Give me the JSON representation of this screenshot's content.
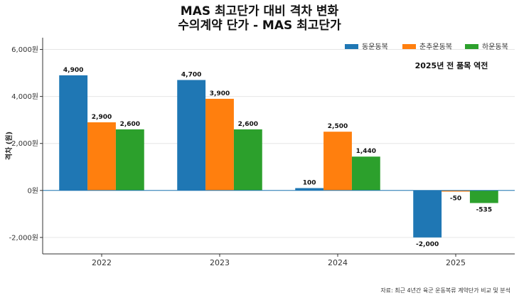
{
  "chart_data": {
    "type": "bar",
    "title_lines": [
      "MAS 최고단가 대비 격차 변화",
      "수의계약 단가 - MAS 최고단가"
    ],
    "categories": [
      "2022",
      "2023",
      "2024",
      "2025"
    ],
    "series": [
      {
        "name": "동운동복",
        "color": "#1f77b4",
        "values": [
          4900,
          4700,
          100,
          -2000
        ],
        "labels": [
          "4,900",
          "4,700",
          "100",
          "-2,000"
        ]
      },
      {
        "name": "춘추운동복",
        "color": "#ff7f0e",
        "values": [
          2900,
          3900,
          2500,
          -50
        ],
        "labels": [
          "2,900",
          "3,900",
          "2,500",
          "-50"
        ]
      },
      {
        "name": "하운동복",
        "color": "#2ca02c",
        "values": [
          2600,
          2600,
          1440,
          -535
        ],
        "labels": [
          "2,600",
          "2,600",
          "1,440",
          "-535"
        ]
      }
    ],
    "ylabel": "격차 (원)",
    "xlabel": "",
    "ylim": [
      -2700,
      6500
    ],
    "yticks": [
      -2000,
      0,
      2000,
      4000,
      6000
    ],
    "ytick_labels": [
      "-2,000원",
      "0원",
      "2,000원",
      "4,000원",
      "6,000원"
    ],
    "grid": true,
    "zero_line_color": "#1f77b4",
    "legend_position": "top-right",
    "annotation": "2025년 전 품목 역전",
    "source_note": "자료: 최근 4년간 육군 운동복류 계약단가 비교 및 분석"
  }
}
